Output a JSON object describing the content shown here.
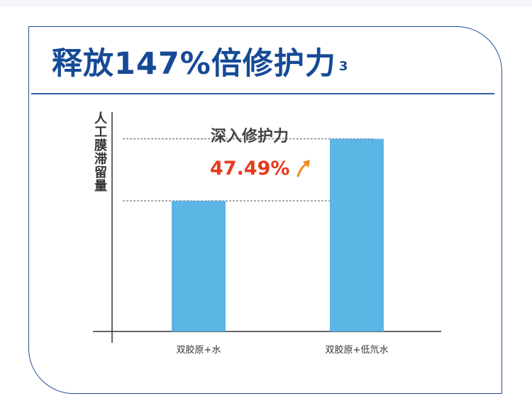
{
  "title": "释放147%倍修护力",
  "title_superscript": "3",
  "annotation": {
    "heading": "深入修护力",
    "value": "47.49%"
  },
  "colors": {
    "title": "#164a97",
    "bar": "#5bb5e5",
    "annotation_value": "#e8391d",
    "arrow": "#f08a1c",
    "border": "#1f4d8f"
  },
  "chart_data": {
    "type": "bar",
    "ylabel": "人工膜滞留量",
    "xlabel": "",
    "categories": [
      "双胶原+水",
      "双胶原+低氘水"
    ],
    "values": [
      100,
      147.49
    ],
    "ylim": [
      0,
      160
    ],
    "grid": false,
    "reference_lines": [
      100,
      147.49
    ]
  }
}
